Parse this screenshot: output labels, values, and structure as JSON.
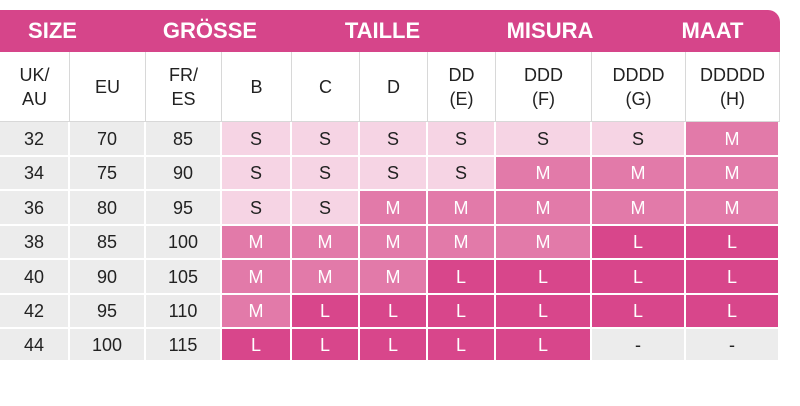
{
  "header": {
    "groups": [
      "SIZE",
      "GRÖSSE",
      "TAILLE",
      "MISURA",
      "MAAT"
    ]
  },
  "table": {
    "columns": [
      "UK/\nAU",
      "EU",
      "FR/\nES",
      "B",
      "C",
      "D",
      "DD\n(E)",
      "DDD\n(F)",
      "DDDD\n(G)",
      "DDDDD\n(H)"
    ],
    "rows": [
      [
        32,
        70,
        85,
        "S",
        "S",
        "S",
        "S",
        "S",
        "S",
        "M"
      ],
      [
        34,
        75,
        90,
        "S",
        "S",
        "S",
        "S",
        "M",
        "M",
        "M"
      ],
      [
        36,
        80,
        95,
        "S",
        "S",
        "M",
        "M",
        "M",
        "M",
        "M"
      ],
      [
        38,
        85,
        100,
        "M",
        "M",
        "M",
        "M",
        "M",
        "L",
        "L"
      ],
      [
        40,
        90,
        105,
        "M",
        "M",
        "M",
        "L",
        "L",
        "L",
        "L"
      ],
      [
        42,
        95,
        110,
        "M",
        "L",
        "L",
        "L",
        "L",
        "L",
        "L"
      ],
      [
        44,
        100,
        115,
        "L",
        "L",
        "L",
        "L",
        "L",
        "-",
        "-"
      ]
    ]
  }
}
